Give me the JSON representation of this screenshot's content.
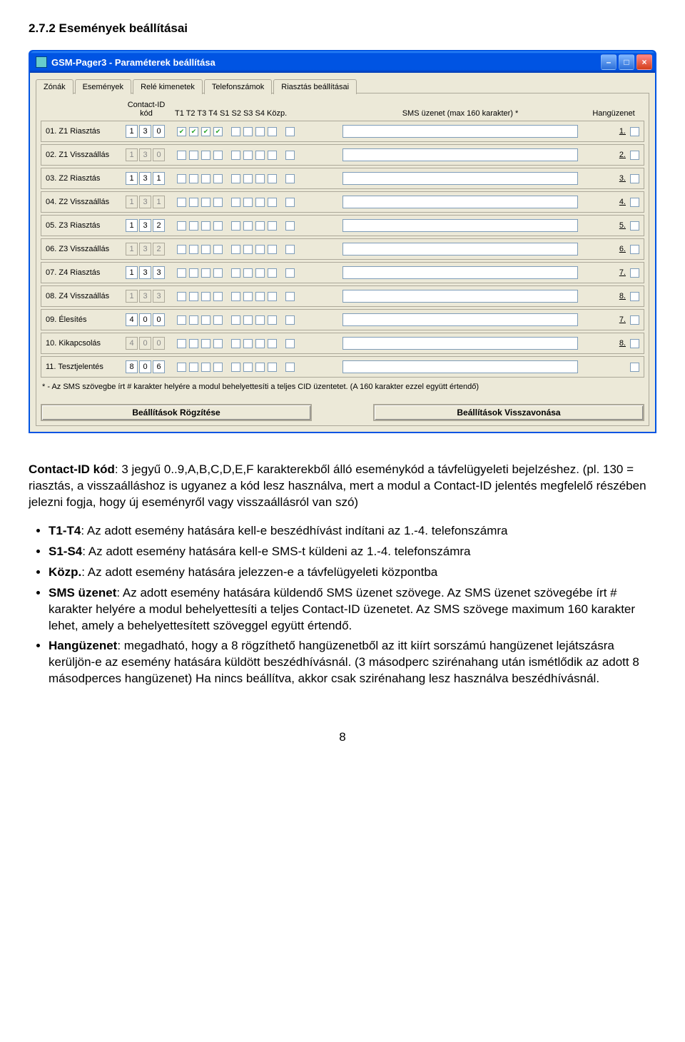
{
  "section_title": "2.7.2  Események beállításai",
  "window": {
    "title": "GSM-Pager3    -    Paraméterek beállítása",
    "close_glyph": "×",
    "min_glyph": "–",
    "max_glyph": "□"
  },
  "tabs": {
    "items": [
      {
        "id": "zonak",
        "label": "Zónák",
        "active": false
      },
      {
        "id": "esemenyek",
        "label": "Események",
        "active": true
      },
      {
        "id": "rele",
        "label": "Relé kimenetek",
        "active": false
      },
      {
        "id": "tel",
        "label": "Telefonszámok",
        "active": false
      },
      {
        "id": "riaszt",
        "label": "Riasztás beállításai",
        "active": false
      }
    ]
  },
  "headers": {
    "label": "",
    "cid": "Contact-ID kód",
    "chk": "T1 T2 T3 T4    S1 S2 S3 S4   Közp.",
    "sms": "SMS üzenet   (max 160 karakter) *",
    "hang": "Hangüzenet"
  },
  "rows": [
    {
      "label": "01. Z1 Riasztás",
      "cid": [
        "1",
        "3",
        "0"
      ],
      "disabled": false,
      "t": [
        true,
        true,
        true,
        true
      ],
      "s": [
        false,
        false,
        false,
        false
      ],
      "k": [
        false
      ],
      "n": "1."
    },
    {
      "label": "02. Z1 Visszaállás",
      "cid": [
        "1",
        "3",
        "0"
      ],
      "disabled": true,
      "t": [
        false,
        false,
        false,
        false
      ],
      "s": [
        false,
        false,
        false,
        false
      ],
      "k": [
        false
      ],
      "n": "2."
    },
    {
      "label": "03. Z2 Riasztás",
      "cid": [
        "1",
        "3",
        "1"
      ],
      "disabled": false,
      "t": [
        false,
        false,
        false,
        false
      ],
      "s": [
        false,
        false,
        false,
        false
      ],
      "k": [
        false
      ],
      "n": "3."
    },
    {
      "label": "04. Z2 Visszaállás",
      "cid": [
        "1",
        "3",
        "1"
      ],
      "disabled": true,
      "t": [
        false,
        false,
        false,
        false
      ],
      "s": [
        false,
        false,
        false,
        false
      ],
      "k": [
        false
      ],
      "n": "4."
    },
    {
      "label": "05. Z3 Riasztás",
      "cid": [
        "1",
        "3",
        "2"
      ],
      "disabled": false,
      "t": [
        false,
        false,
        false,
        false
      ],
      "s": [
        false,
        false,
        false,
        false
      ],
      "k": [
        false
      ],
      "n": "5."
    },
    {
      "label": "06. Z3 Visszaállás",
      "cid": [
        "1",
        "3",
        "2"
      ],
      "disabled": true,
      "t": [
        false,
        false,
        false,
        false
      ],
      "s": [
        false,
        false,
        false,
        false
      ],
      "k": [
        false
      ],
      "n": "6."
    },
    {
      "label": "07. Z4 Riasztás",
      "cid": [
        "1",
        "3",
        "3"
      ],
      "disabled": false,
      "t": [
        false,
        false,
        false,
        false
      ],
      "s": [
        false,
        false,
        false,
        false
      ],
      "k": [
        false
      ],
      "n": "7."
    },
    {
      "label": "08. Z4 Visszaállás",
      "cid": [
        "1",
        "3",
        "3"
      ],
      "disabled": true,
      "t": [
        false,
        false,
        false,
        false
      ],
      "s": [
        false,
        false,
        false,
        false
      ],
      "k": [
        false
      ],
      "n": "8."
    },
    {
      "label": "09. Élesítés",
      "cid": [
        "4",
        "0",
        "0"
      ],
      "disabled": false,
      "t": [
        false,
        false,
        false,
        false
      ],
      "s": [
        false,
        false,
        false,
        false
      ],
      "k": [
        false
      ],
      "n": "7."
    },
    {
      "label": "10. Kikapcsolás",
      "cid": [
        "4",
        "0",
        "0"
      ],
      "disabled": true,
      "t": [
        false,
        false,
        false,
        false
      ],
      "s": [
        false,
        false,
        false,
        false
      ],
      "k": [
        false
      ],
      "n": "8."
    },
    {
      "label": "11. Tesztjelentés",
      "cid": [
        "8",
        "0",
        "6"
      ],
      "disabled": false,
      "t": [
        false,
        false,
        false,
        false
      ],
      "s": [
        false,
        false,
        false,
        false
      ],
      "k": [
        false
      ],
      "n": ""
    }
  ],
  "footnote": "* - Az SMS szövegbe írt # karakter helyére a modul behelyettesíti a teljes CID üzentetet. (A 160 karakter ezzel együtt értendő)",
  "buttons": {
    "save": "Beállítások Rögzítése",
    "cancel": "Beállítások Visszavonása"
  },
  "checkmark": "✔",
  "prose": {
    "p1a": "Contact-ID kód",
    "p1b": ": 3 jegyű 0..9,A,B,C,D,E,F karakterekből álló eseménykód a távfelügyeleti bejelzéshez. (pl. 130 = riasztás, a visszaálláshoz is ugyanez a kód lesz használva, mert a modul a Contact-ID jelentés megfelelő részében jelezni fogja, hogy új eseményről vagy visszaállásról van szó)",
    "l1a": "T1-T4",
    "l1b": ": Az adott esemény hatására kell-e beszédhívást indítani az 1.-4. telefonszámra",
    "l2a": "S1-S4",
    "l2b": ": Az adott esemény hatására kell-e SMS-t küldeni az 1.-4. telefonszámra",
    "l3a": "Közp.",
    "l3b": ": Az adott esemény hatására jelezzen-e a távfelügyeleti központba",
    "l4a": "SMS üzenet",
    "l4b": ": Az adott esemény hatására küldendő SMS üzenet szövege. Az SMS üzenet szövegébe írt # karakter helyére a modul behelyettesíti a teljes Contact-ID üzenetet. Az SMS szövege maximum 160 karakter lehet, amely a behelyettesített szöveggel együtt értendő.",
    "l5a": "Hangüzenet",
    "l5b": ": megadható, hogy a 8 rögzíthető hangüzenetből az itt kiírt sorszámú hangüzenet lejátszásra kerüljön-e az esemény hatására küldött beszédhívásnál. (3 másodperc szirénahang után ismétlődik az adott 8 másodperces hangüzenet) Ha nincs beállítva, akkor csak szirénahang lesz használva beszédhívásnál."
  },
  "page_number": "8"
}
